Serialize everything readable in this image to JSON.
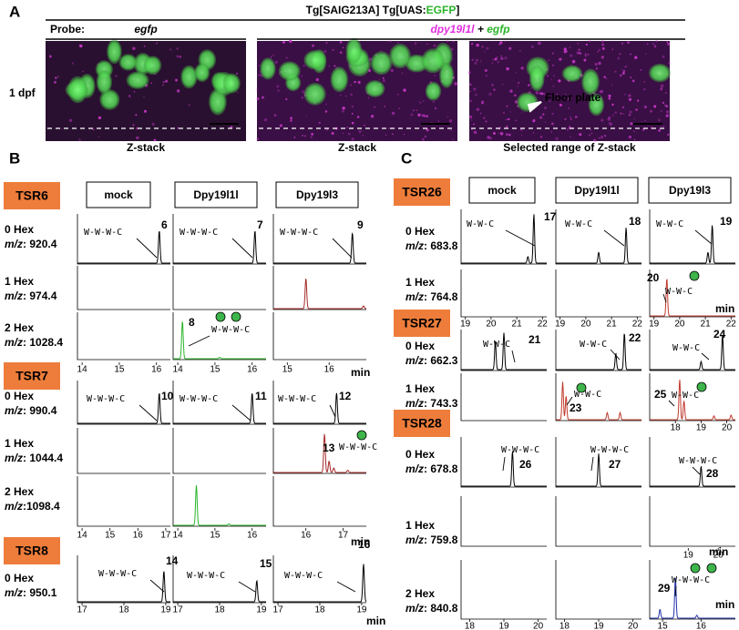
{
  "panel_a": {
    "letter": "A",
    "header": [
      "Tg[SAIG213A] Tg[UAS:",
      "EGFP",
      "]"
    ],
    "probe_label": "Probe:",
    "probe_1": "egfp",
    "probe_2": [
      "dpy19l1l",
      " + ",
      "egfp"
    ],
    "row_label": "1 dpf",
    "floor_plate": "Floor plate",
    "captions": [
      "Z-stack",
      "Z-stack",
      "Selected range of Z-stack"
    ]
  },
  "panel_b": {
    "letter": "B",
    "columns": [
      "mock",
      "Dpy19l1l",
      "Dpy19l3"
    ],
    "mz_label": "m/z",
    "min_label": "min",
    "glycan": "W-W-W-C",
    "groups": [
      {
        "name": "TSR6",
        "rows": [
          {
            "hex": "0 Hex",
            "mz": ": 920.4"
          },
          {
            "hex": "1 Hex",
            "mz": ": 974.4"
          },
          {
            "hex": "2 Hex",
            "mz": ": 1028.4"
          }
        ],
        "peaks": [
          "6",
          "7",
          "8",
          "9"
        ],
        "ticks": [
          [
            "14",
            "15",
            "16"
          ],
          [
            "14",
            "15",
            "16"
          ],
          [
            "15",
            "16"
          ]
        ]
      },
      {
        "name": "TSR7",
        "rows": [
          {
            "hex": "0 Hex",
            "mz": ": 990.4"
          },
          {
            "hex": "1 Hex",
            "mz": ": 1044.4"
          },
          {
            "hex": "2 Hex",
            "mz": ":1098.4"
          }
        ],
        "peaks": [
          "10",
          "11",
          "12",
          "13"
        ],
        "ticks": [
          [
            "14",
            "15",
            "16",
            "17"
          ],
          [
            "14",
            "15",
            "16"
          ],
          [
            "16",
            "17"
          ]
        ]
      },
      {
        "name": "TSR8",
        "rows": [
          {
            "hex": "0 Hex",
            "mz": ": 950.1"
          }
        ],
        "peaks": [
          "14",
          "15",
          "16"
        ],
        "ticks": [
          [
            "17",
            "18",
            "19"
          ],
          [
            "17",
            "18",
            "19"
          ],
          [
            "17",
            "18",
            "19"
          ]
        ]
      }
    ]
  },
  "panel_c": {
    "letter": "C",
    "columns": [
      "mock",
      "Dpy19l1l",
      "Dpy19l3"
    ],
    "mz_label": "m/z",
    "min_label": "min",
    "groups": [
      {
        "name": "TSR26",
        "glycan": "W-W-C",
        "rows": [
          {
            "hex": "0 Hex",
            "mz": ": 683.8"
          },
          {
            "hex": "1 Hex",
            "mz": ": 764.8"
          }
        ],
        "peaks": [
          "17",
          "18",
          "19",
          "20"
        ],
        "ticks": [
          [
            "19",
            "20",
            "21",
            "22"
          ],
          [
            "19",
            "20",
            "21",
            "22"
          ],
          [
            "19",
            "20",
            "21",
            "22"
          ]
        ]
      },
      {
        "name": "TSR27",
        "glycan": "W-W-C",
        "rows": [
          {
            "hex": "0 Hex",
            "mz": ": 662.3"
          },
          {
            "hex": "1 Hex",
            "mz": ": 743.3"
          }
        ],
        "peaks": [
          "21",
          "22",
          "24",
          "23",
          "25"
        ],
        "ticks": [
          [
            "18",
            "19",
            "20"
          ]
        ]
      },
      {
        "name": "TSR28",
        "glycan": "W-W-W-C",
        "rows": [
          {
            "hex": "0 Hex",
            "mz": ": 678.8"
          },
          {
            "hex": "1 Hex",
            "mz": ": 759.8"
          },
          {
            "hex": "2 Hex",
            "mz": ": 840.8"
          }
        ],
        "peaks": [
          "26",
          "27",
          "28",
          "29"
        ],
        "ticks": [
          [
            "18",
            "19",
            "20"
          ],
          [
            "18",
            "19",
            "20"
          ],
          [
            "15",
            "16"
          ],
          [
            "19",
            "20"
          ]
        ]
      }
    ]
  }
}
